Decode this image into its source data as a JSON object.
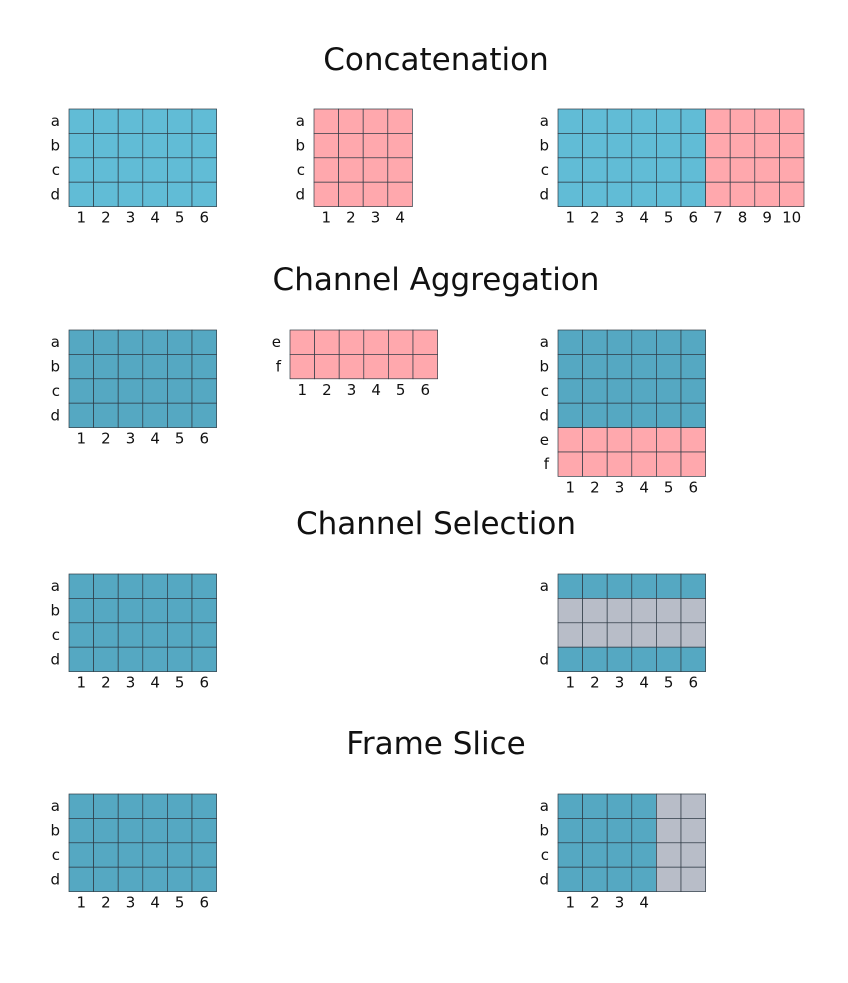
{
  "colors": {
    "blue": "#61bcd6",
    "teal": "#55a8c2",
    "pink": "#ffa8ad",
    "gray": "#b8bdc8",
    "grid": "#2f3b45"
  },
  "sections": [
    {
      "title": "Concatenation",
      "grids": [
        {
          "rows": [
            "a",
            "b",
            "c",
            "d"
          ],
          "cols": [
            "1",
            "2",
            "3",
            "4",
            "5",
            "6"
          ],
          "row_colors": [
            "blue",
            "blue",
            "blue",
            "blue"
          ],
          "col_colors": [
            "blue",
            "blue",
            "blue",
            "blue",
            "blue",
            "blue"
          ]
        },
        {
          "rows": [
            "a",
            "b",
            "c",
            "d"
          ],
          "cols": [
            "1",
            "2",
            "3",
            "4"
          ],
          "row_colors": [
            "pink",
            "pink",
            "pink",
            "pink"
          ],
          "col_colors": [
            "pink",
            "pink",
            "pink",
            "pink"
          ]
        },
        {
          "rows": [
            "a",
            "b",
            "c",
            "d"
          ],
          "cols": [
            "1",
            "2",
            "3",
            "4",
            "5",
            "6",
            "7",
            "8",
            "9",
            "10"
          ],
          "row_colors": [
            null,
            null,
            null,
            null
          ],
          "col_colors": [
            "blue",
            "blue",
            "blue",
            "blue",
            "blue",
            "blue",
            "pink",
            "pink",
            "pink",
            "pink"
          ]
        }
      ]
    },
    {
      "title": "Channel Aggregation",
      "grids": [
        {
          "rows": [
            "a",
            "b",
            "c",
            "d"
          ],
          "cols": [
            "1",
            "2",
            "3",
            "4",
            "5",
            "6"
          ],
          "row_colors": [
            "teal",
            "teal",
            "teal",
            "teal"
          ],
          "col_colors": null
        },
        {
          "rows": [
            "e",
            "f"
          ],
          "cols": [
            "1",
            "2",
            "3",
            "4",
            "5",
            "6"
          ],
          "row_colors": [
            "pink",
            "pink"
          ],
          "col_colors": null
        },
        {
          "rows": [
            "a",
            "b",
            "c",
            "d",
            "e",
            "f"
          ],
          "cols": [
            "1",
            "2",
            "3",
            "4",
            "5",
            "6"
          ],
          "row_colors": [
            "teal",
            "teal",
            "teal",
            "teal",
            "pink",
            "pink"
          ],
          "col_colors": null
        }
      ]
    },
    {
      "title": "Channel Selection",
      "grids": [
        {
          "rows": [
            "a",
            "b",
            "c",
            "d"
          ],
          "cols": [
            "1",
            "2",
            "3",
            "4",
            "5",
            "6"
          ],
          "row_colors": [
            "teal",
            "teal",
            "teal",
            "teal"
          ],
          "col_colors": null
        },
        {
          "rows": [
            "a",
            "",
            "",
            "d"
          ],
          "cols": [
            "1",
            "2",
            "3",
            "4",
            "5",
            "6"
          ],
          "row_colors": [
            "teal",
            "gray",
            "gray",
            "teal"
          ],
          "col_colors": null
        }
      ]
    },
    {
      "title": "Frame Slice",
      "grids": [
        {
          "rows": [
            "a",
            "b",
            "c",
            "d"
          ],
          "cols": [
            "1",
            "2",
            "3",
            "4",
            "5",
            "6"
          ],
          "row_colors": [
            "teal",
            "teal",
            "teal",
            "teal"
          ],
          "col_colors": null
        },
        {
          "rows": [
            "a",
            "b",
            "c",
            "d"
          ],
          "cols": [
            "1",
            "2",
            "3",
            "4",
            "",
            ""
          ],
          "row_colors": null,
          "col_colors": [
            "teal",
            "teal",
            "teal",
            "teal",
            "gray",
            "gray"
          ]
        }
      ]
    }
  ]
}
